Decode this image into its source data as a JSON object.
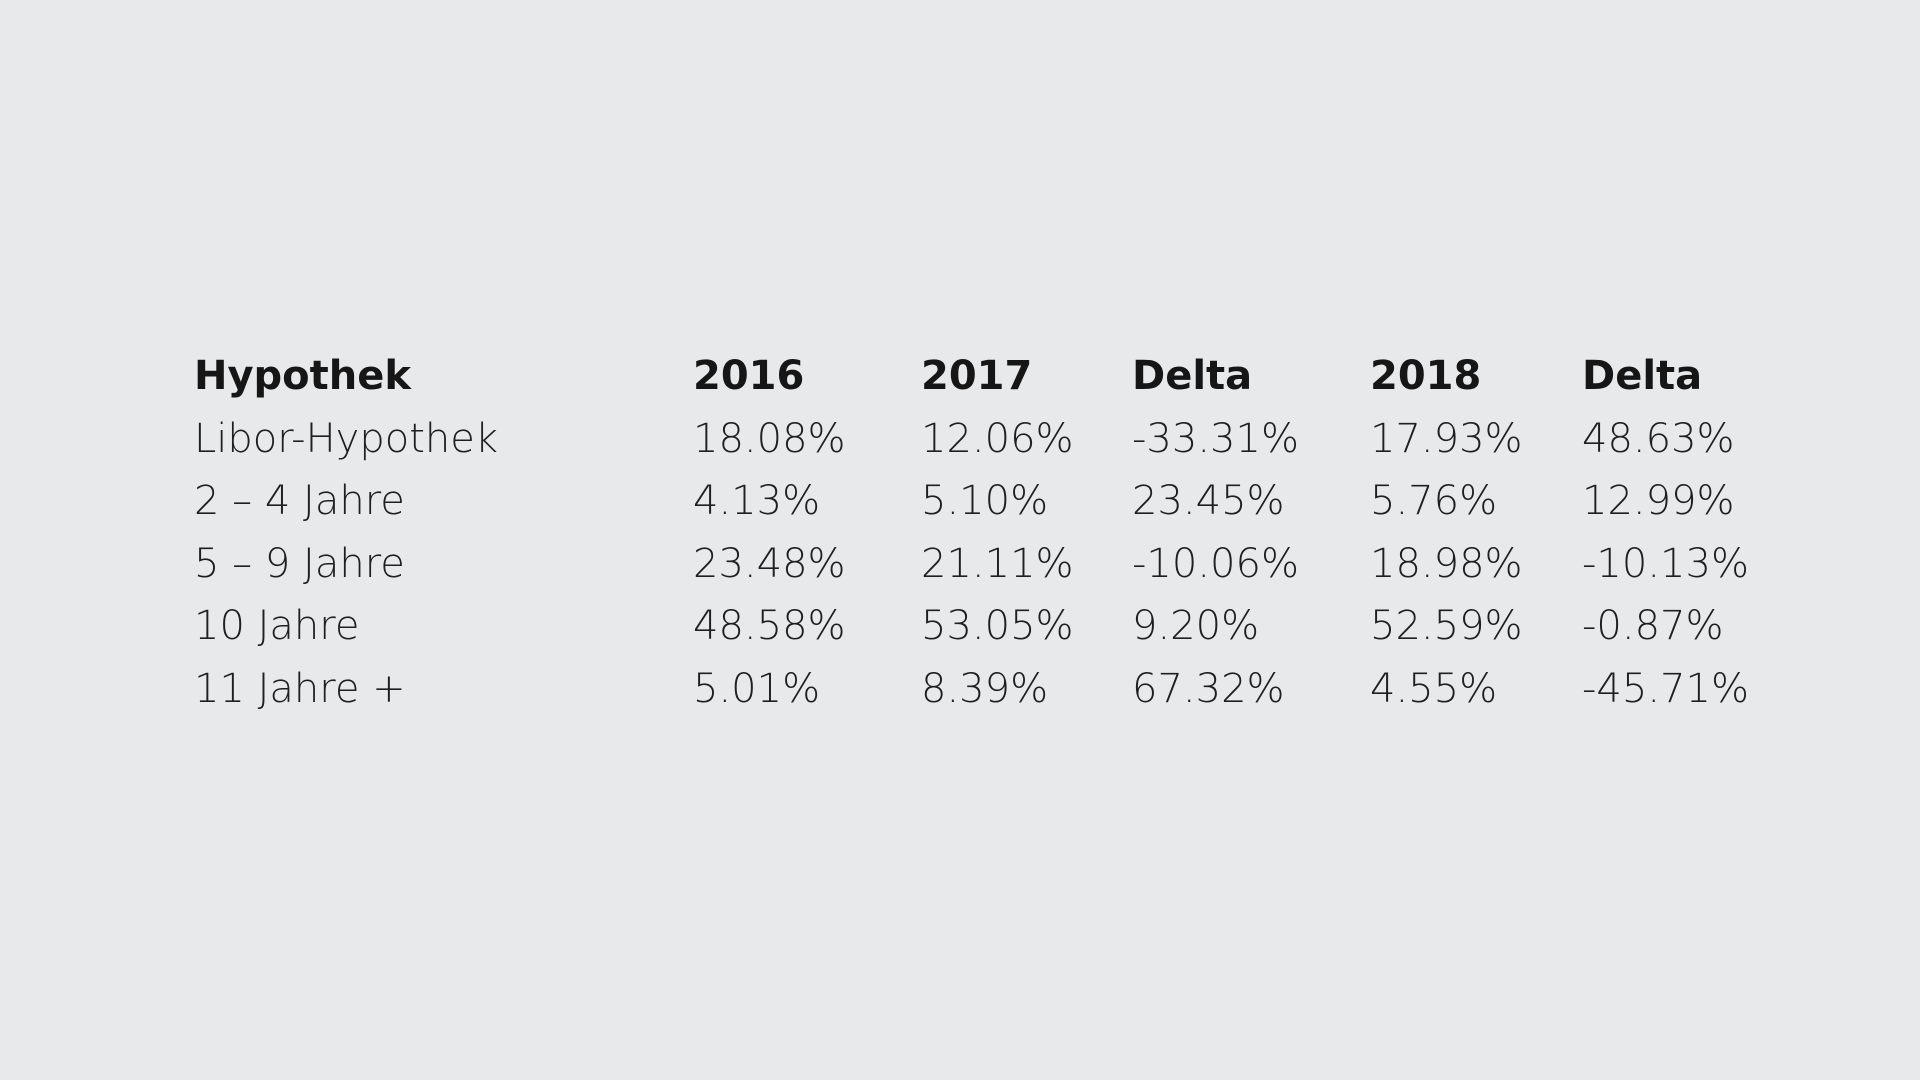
{
  "chart_data": {
    "type": "table",
    "columns": [
      "Hypothek",
      "2016",
      "2017",
      "Delta",
      "2018",
      "Delta"
    ],
    "rows": [
      [
        "Libor-Hypothek",
        "18.08%",
        "12.06%",
        "-33.31%",
        "17.93%",
        "48.63%"
      ],
      [
        "2 – 4 Jahre",
        "4.13%",
        "5.10%",
        "23.45%",
        "5.76%",
        "12.99%"
      ],
      [
        "5 – 9 Jahre",
        "23.48%",
        "21.11%",
        "-10.06%",
        "18.98%",
        "-10.13%"
      ],
      [
        "10 Jahre",
        "48.58%",
        "53.05%",
        "9.20%",
        "52.59%",
        "-0.87%"
      ],
      [
        "11 Jahre +",
        "5.01%",
        "8.39%",
        "67.32%",
        "4.55%",
        "-45.71%"
      ]
    ]
  },
  "colors": {
    "background": "#e8e9eb",
    "text": "#1a1a1a"
  }
}
